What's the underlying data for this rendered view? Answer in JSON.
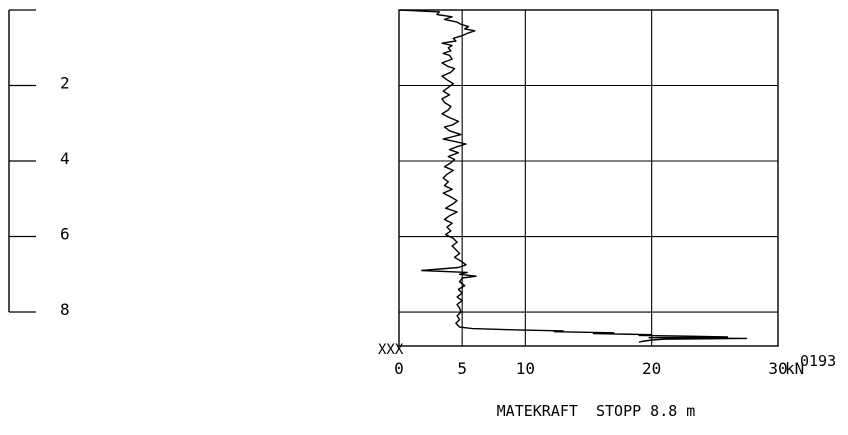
{
  "chart_data": {
    "type": "line",
    "title": "",
    "xlabel": "",
    "ylabel": "",
    "x_unit": "kN",
    "xlim": [
      0,
      30
    ],
    "ylim": [
      0,
      8.8
    ],
    "x_ticks": [
      "0",
      "5",
      "10",
      "20",
      "30"
    ],
    "x_tick_values": [
      0,
      5,
      10,
      20,
      30
    ],
    "depth_scale_labels": [
      "2",
      "4",
      "6",
      "8"
    ],
    "depth_scale_values": [
      2,
      4,
      6,
      8
    ],
    "footer_text": "MATEKRAFT  STOPP 8.8 m",
    "id_label": "0193",
    "origin_marker": "XXX",
    "grid": true,
    "series": [
      {
        "color": "#000000",
        "points": [
          [
            0.1,
            0.0
          ],
          [
            3.2,
            0.05
          ],
          [
            3.0,
            0.12
          ],
          [
            4.2,
            0.18
          ],
          [
            3.6,
            0.25
          ],
          [
            4.6,
            0.32
          ],
          [
            4.9,
            0.38
          ],
          [
            5.5,
            0.44
          ],
          [
            5.2,
            0.5
          ],
          [
            6.0,
            0.55
          ],
          [
            5.4,
            0.62
          ],
          [
            5.0,
            0.68
          ],
          [
            4.3,
            0.75
          ],
          [
            4.5,
            0.82
          ],
          [
            3.4,
            0.88
          ],
          [
            4.2,
            0.94
          ],
          [
            3.9,
            1.0
          ],
          [
            4.1,
            1.08
          ],
          [
            3.5,
            1.15
          ],
          [
            4.0,
            1.2
          ],
          [
            4.2,
            1.3
          ],
          [
            3.4,
            1.4
          ],
          [
            3.9,
            1.5
          ],
          [
            4.4,
            1.55
          ],
          [
            4.1,
            1.65
          ],
          [
            3.4,
            1.75
          ],
          [
            3.8,
            1.85
          ],
          [
            4.3,
            1.95
          ],
          [
            3.9,
            2.05
          ],
          [
            3.5,
            2.15
          ],
          [
            4.0,
            2.25
          ],
          [
            3.4,
            2.35
          ],
          [
            3.6,
            2.45
          ],
          [
            4.1,
            2.55
          ],
          [
            3.9,
            2.65
          ],
          [
            3.4,
            2.75
          ],
          [
            4.0,
            2.85
          ],
          [
            4.7,
            2.95
          ],
          [
            4.2,
            3.05
          ],
          [
            3.6,
            3.1
          ],
          [
            4.0,
            3.2
          ],
          [
            4.9,
            3.3
          ],
          [
            4.3,
            3.35
          ],
          [
            3.5,
            3.42
          ],
          [
            4.4,
            3.48
          ],
          [
            5.3,
            3.55
          ],
          [
            4.6,
            3.62
          ],
          [
            4.0,
            3.7
          ],
          [
            4.7,
            3.78
          ],
          [
            3.9,
            3.88
          ],
          [
            4.4,
            3.96
          ],
          [
            4.1,
            4.05
          ],
          [
            3.6,
            4.15
          ],
          [
            4.3,
            4.25
          ],
          [
            3.8,
            4.35
          ],
          [
            3.5,
            4.45
          ],
          [
            3.9,
            4.55
          ],
          [
            3.6,
            4.65
          ],
          [
            4.2,
            4.75
          ],
          [
            3.5,
            4.85
          ],
          [
            4.1,
            4.95
          ],
          [
            4.6,
            5.05
          ],
          [
            4.2,
            5.15
          ],
          [
            3.7,
            5.25
          ],
          [
            4.6,
            5.35
          ],
          [
            4.0,
            5.45
          ],
          [
            3.6,
            5.55
          ],
          [
            4.2,
            5.65
          ],
          [
            3.8,
            5.75
          ],
          [
            4.1,
            5.85
          ],
          [
            3.7,
            5.95
          ],
          [
            4.3,
            6.05
          ],
          [
            4.6,
            6.15
          ],
          [
            4.2,
            6.25
          ],
          [
            4.5,
            6.35
          ],
          [
            4.8,
            6.45
          ],
          [
            4.4,
            6.55
          ],
          [
            4.9,
            6.65
          ],
          [
            5.3,
            6.75
          ],
          [
            4.7,
            6.82
          ],
          [
            1.8,
            6.9
          ],
          [
            5.4,
            6.95
          ],
          [
            4.8,
            7.0
          ],
          [
            6.1,
            7.05
          ],
          [
            5.0,
            7.1
          ],
          [
            4.8,
            7.2
          ],
          [
            5.2,
            7.3
          ],
          [
            4.7,
            7.4
          ],
          [
            5.0,
            7.5
          ],
          [
            4.6,
            7.6
          ],
          [
            5.0,
            7.7
          ],
          [
            4.6,
            7.8
          ],
          [
            4.8,
            7.9
          ],
          [
            4.9,
            8.0
          ],
          [
            4.6,
            8.1
          ],
          [
            4.8,
            8.2
          ],
          [
            4.5,
            8.3
          ],
          [
            4.8,
            8.4
          ],
          [
            5.8,
            8.44
          ],
          [
            9.0,
            8.47
          ],
          [
            13.0,
            8.5
          ],
          [
            12.3,
            8.52
          ],
          [
            17.0,
            8.55
          ],
          [
            15.4,
            8.57
          ],
          [
            20.0,
            8.6
          ],
          [
            19.0,
            8.62
          ],
          [
            23.0,
            8.64
          ],
          [
            26.0,
            8.66
          ],
          [
            19.8,
            8.68
          ],
          [
            27.5,
            8.7
          ],
          [
            21.0,
            8.72
          ],
          [
            20.0,
            8.74
          ],
          [
            19.2,
            8.78
          ],
          [
            19.0,
            8.8
          ]
        ]
      }
    ]
  }
}
